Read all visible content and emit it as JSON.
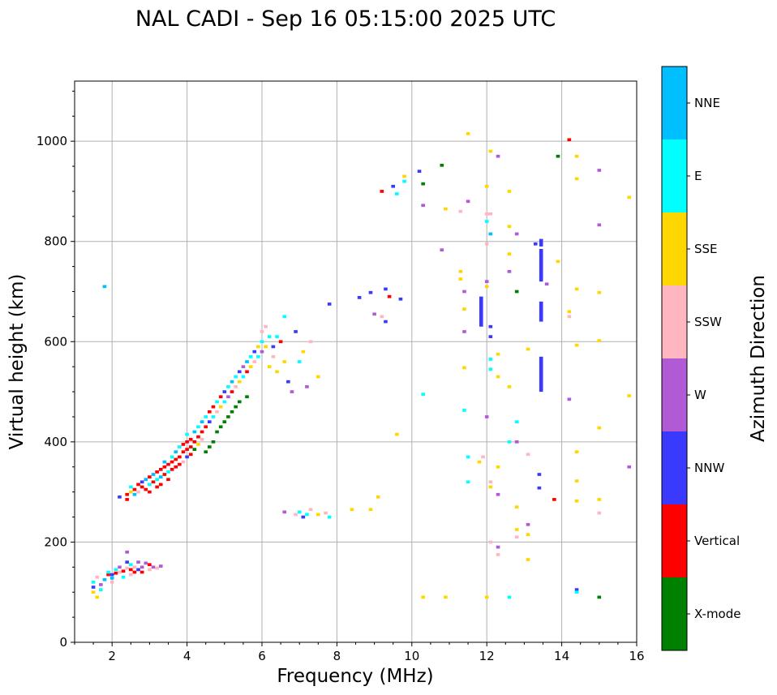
{
  "chart_data": {
    "type": "scatter",
    "title": "NAL CADI - Sep 16 05:15:00 2025 UTC",
    "xlabel": "Frequency (MHz)",
    "ylabel": "Virtual height (km)",
    "xlim": [
      1,
      16
    ],
    "ylim": [
      0,
      1120
    ],
    "xticks": [
      2,
      4,
      6,
      8,
      10,
      12,
      14,
      16
    ],
    "yticks": [
      0,
      200,
      400,
      600,
      800,
      1000
    ],
    "grid": true,
    "colorbar": {
      "title": "Azimuth Direction",
      "categories": [
        {
          "name": "X-mode",
          "color": "#008000"
        },
        {
          "name": "Vertical",
          "color": "#ff0000"
        },
        {
          "name": "NNW",
          "color": "#3a3aff"
        },
        {
          "name": "W",
          "color": "#b25ad6"
        },
        {
          "name": "SSW",
          "color": "#ffb6c1"
        },
        {
          "name": "SSE",
          "color": "#ffd700"
        },
        {
          "name": "E",
          "color": "#00ffff"
        },
        {
          "name": "NNE",
          "color": "#00bfff"
        }
      ]
    },
    "points": [
      [
        1.5,
        100,
        5
      ],
      [
        1.5,
        110,
        2
      ],
      [
        1.5,
        120,
        6
      ],
      [
        1.6,
        90,
        5
      ],
      [
        1.6,
        130,
        4
      ],
      [
        1.7,
        105,
        6
      ],
      [
        1.7,
        115,
        3
      ],
      [
        1.8,
        125,
        7
      ],
      [
        1.9,
        135,
        1
      ],
      [
        1.9,
        140,
        6
      ],
      [
        2.0,
        135,
        2
      ],
      [
        2.0,
        120,
        4
      ],
      [
        2.0,
        128,
        7
      ],
      [
        2.1,
        138,
        1
      ],
      [
        2.1,
        145,
        6
      ],
      [
        2.2,
        140,
        4
      ],
      [
        2.2,
        150,
        3
      ],
      [
        2.3,
        142,
        1
      ],
      [
        2.3,
        130,
        6
      ],
      [
        2.4,
        148,
        4
      ],
      [
        2.4,
        160,
        2
      ],
      [
        2.4,
        180,
        3
      ],
      [
        2.5,
        145,
        1
      ],
      [
        2.5,
        135,
        4
      ],
      [
        2.5,
        155,
        6
      ],
      [
        2.6,
        150,
        4
      ],
      [
        2.6,
        140,
        1
      ],
      [
        2.7,
        160,
        3
      ],
      [
        2.7,
        145,
        2
      ],
      [
        2.8,
        150,
        3
      ],
      [
        2.8,
        140,
        1
      ],
      [
        2.9,
        158,
        3
      ],
      [
        3.0,
        145,
        4
      ],
      [
        3.0,
        155,
        1
      ],
      [
        3.1,
        150,
        3
      ],
      [
        3.2,
        148,
        4
      ],
      [
        3.3,
        152,
        3
      ],
      [
        1.8,
        710,
        7
      ],
      [
        2.2,
        290,
        2
      ],
      [
        2.4,
        295,
        1
      ],
      [
        2.4,
        285,
        1
      ],
      [
        2.5,
        300,
        5
      ],
      [
        2.5,
        310,
        6
      ],
      [
        2.6,
        305,
        1
      ],
      [
        2.6,
        295,
        7
      ],
      [
        2.7,
        315,
        1
      ],
      [
        2.7,
        300,
        4
      ],
      [
        2.8,
        320,
        2
      ],
      [
        2.8,
        310,
        1
      ],
      [
        2.9,
        325,
        7
      ],
      [
        2.9,
        305,
        1
      ],
      [
        3.0,
        330,
        1
      ],
      [
        3.0,
        315,
        6
      ],
      [
        3.0,
        300,
        1
      ],
      [
        3.1,
        335,
        7
      ],
      [
        3.1,
        320,
        1
      ],
      [
        3.2,
        340,
        1
      ],
      [
        3.2,
        325,
        6
      ],
      [
        3.2,
        310,
        1
      ],
      [
        3.3,
        345,
        1
      ],
      [
        3.3,
        330,
        7
      ],
      [
        3.3,
        315,
        1
      ],
      [
        3.4,
        350,
        1
      ],
      [
        3.4,
        335,
        1
      ],
      [
        3.4,
        360,
        7
      ],
      [
        3.5,
        355,
        1
      ],
      [
        3.5,
        340,
        6
      ],
      [
        3.5,
        325,
        1
      ],
      [
        3.6,
        360,
        1
      ],
      [
        3.6,
        345,
        1
      ],
      [
        3.6,
        370,
        6
      ],
      [
        3.7,
        365,
        1
      ],
      [
        3.7,
        350,
        1
      ],
      [
        3.7,
        380,
        7
      ],
      [
        3.8,
        370,
        1
      ],
      [
        3.8,
        355,
        1
      ],
      [
        3.8,
        390,
        6
      ],
      [
        3.9,
        380,
        1
      ],
      [
        3.9,
        395,
        1
      ],
      [
        3.9,
        360,
        4
      ],
      [
        4.0,
        385,
        1
      ],
      [
        4.0,
        400,
        1
      ],
      [
        4.0,
        370,
        2
      ],
      [
        4.0,
        415,
        6
      ],
      [
        4.1,
        390,
        1
      ],
      [
        4.1,
        405,
        1
      ],
      [
        4.1,
        375,
        1
      ],
      [
        4.2,
        400,
        1
      ],
      [
        4.2,
        420,
        7
      ],
      [
        4.2,
        385,
        0
      ],
      [
        4.3,
        410,
        1
      ],
      [
        4.3,
        430,
        6
      ],
      [
        4.3,
        395,
        5
      ],
      [
        4.4,
        420,
        1
      ],
      [
        4.4,
        440,
        7
      ],
      [
        4.4,
        405,
        4
      ],
      [
        4.5,
        430,
        1
      ],
      [
        4.5,
        450,
        6
      ],
      [
        4.5,
        380,
        0
      ],
      [
        4.6,
        440,
        2
      ],
      [
        4.6,
        460,
        1
      ],
      [
        4.6,
        390,
        0
      ],
      [
        4.7,
        450,
        6
      ],
      [
        4.7,
        470,
        1
      ],
      [
        4.7,
        400,
        0
      ],
      [
        4.8,
        460,
        4
      ],
      [
        4.8,
        480,
        6
      ],
      [
        4.8,
        420,
        0
      ],
      [
        4.9,
        470,
        5
      ],
      [
        4.9,
        490,
        1
      ],
      [
        4.9,
        430,
        0
      ],
      [
        5.0,
        480,
        6
      ],
      [
        5.0,
        500,
        2
      ],
      [
        5.0,
        440,
        0
      ],
      [
        5.1,
        490,
        3
      ],
      [
        5.1,
        510,
        6
      ],
      [
        5.1,
        450,
        0
      ],
      [
        5.2,
        500,
        1
      ],
      [
        5.2,
        520,
        7
      ],
      [
        5.2,
        460,
        0
      ],
      [
        5.3,
        510,
        4
      ],
      [
        5.3,
        530,
        6
      ],
      [
        5.3,
        470,
        0
      ],
      [
        5.4,
        520,
        5
      ],
      [
        5.4,
        540,
        2
      ],
      [
        5.4,
        480,
        0
      ],
      [
        5.5,
        530,
        6
      ],
      [
        5.5,
        550,
        3
      ],
      [
        5.6,
        540,
        1
      ],
      [
        5.6,
        560,
        7
      ],
      [
        5.6,
        490,
        0
      ],
      [
        5.7,
        550,
        5
      ],
      [
        5.7,
        570,
        6
      ],
      [
        5.8,
        560,
        4
      ],
      [
        5.8,
        580,
        2
      ],
      [
        5.9,
        570,
        6
      ],
      [
        5.9,
        590,
        5
      ],
      [
        6.0,
        580,
        3
      ],
      [
        6.0,
        600,
        6
      ],
      [
        6.0,
        620,
        4
      ],
      [
        6.1,
        590,
        5
      ],
      [
        6.1,
        630,
        4
      ],
      [
        6.2,
        610,
        6
      ],
      [
        6.2,
        550,
        5
      ],
      [
        6.3,
        570,
        4
      ],
      [
        6.3,
        590,
        2
      ],
      [
        6.4,
        540,
        5
      ],
      [
        6.4,
        610,
        6
      ],
      [
        6.5,
        600,
        1
      ],
      [
        6.6,
        560,
        5
      ],
      [
        6.6,
        650,
        6
      ],
      [
        6.7,
        520,
        2
      ],
      [
        6.8,
        500,
        3
      ],
      [
        6.9,
        620,
        2
      ],
      [
        7.0,
        560,
        6
      ],
      [
        7.1,
        580,
        5
      ],
      [
        7.2,
        510,
        3
      ],
      [
        7.3,
        600,
        4
      ],
      [
        7.5,
        530,
        5
      ],
      [
        7.8,
        675,
        2
      ],
      [
        6.6,
        260,
        3
      ],
      [
        6.9,
        255,
        4
      ],
      [
        7.0,
        260,
        6
      ],
      [
        7.1,
        250,
        2
      ],
      [
        7.2,
        255,
        6
      ],
      [
        7.3,
        265,
        4
      ],
      [
        7.5,
        255,
        5
      ],
      [
        7.7,
        258,
        4
      ],
      [
        7.8,
        250,
        6
      ],
      [
        8.4,
        265,
        5
      ],
      [
        8.9,
        265,
        5
      ],
      [
        9.1,
        290,
        5
      ],
      [
        9.6,
        415,
        5
      ],
      [
        8.6,
        688,
        2
      ],
      [
        8.9,
        698,
        2
      ],
      [
        9.0,
        655,
        3
      ],
      [
        9.2,
        650,
        4
      ],
      [
        9.3,
        640,
        2
      ],
      [
        9.4,
        690,
        1
      ],
      [
        9.7,
        685,
        2
      ],
      [
        9.3,
        705,
        2
      ],
      [
        9.2,
        900,
        1
      ],
      [
        9.5,
        910,
        2
      ],
      [
        9.6,
        895,
        6
      ],
      [
        9.8,
        920,
        6
      ],
      [
        9.8,
        930,
        5
      ],
      [
        10.2,
        940,
        2
      ],
      [
        10.3,
        915,
        0
      ],
      [
        10.3,
        872,
        3
      ],
      [
        10.3,
        495,
        6
      ],
      [
        10.8,
        952,
        0
      ],
      [
        10.8,
        783,
        3
      ],
      [
        10.9,
        865,
        5
      ],
      [
        11.3,
        860,
        4
      ],
      [
        11.3,
        740,
        5
      ],
      [
        11.3,
        725,
        5
      ],
      [
        11.4,
        700,
        3
      ],
      [
        11.4,
        665,
        5
      ],
      [
        11.4,
        620,
        3
      ],
      [
        11.4,
        548,
        5
      ],
      [
        11.4,
        463,
        6
      ],
      [
        11.5,
        880,
        3
      ],
      [
        11.5,
        1015,
        5
      ],
      [
        11.5,
        370,
        6
      ],
      [
        11.5,
        320,
        6
      ],
      [
        10.3,
        90,
        5
      ],
      [
        10.9,
        90,
        5
      ],
      [
        11.8,
        360,
        5
      ],
      [
        11.9,
        370,
        4
      ],
      [
        12.0,
        910,
        5
      ],
      [
        12.0,
        855,
        4
      ],
      [
        12.0,
        840,
        6
      ],
      [
        12.0,
        795,
        4
      ],
      [
        12.0,
        720,
        3
      ],
      [
        12.0,
        710,
        5
      ],
      [
        12.0,
        450,
        3
      ],
      [
        12.0,
        90,
        5
      ],
      [
        12.1,
        980,
        5
      ],
      [
        12.1,
        855,
        4
      ],
      [
        12.1,
        815,
        7
      ],
      [
        12.1,
        630,
        2
      ],
      [
        12.1,
        610,
        2
      ],
      [
        12.1,
        565,
        6
      ],
      [
        12.1,
        545,
        6
      ],
      [
        12.1,
        320,
        4
      ],
      [
        12.1,
        310,
        5
      ],
      [
        12.1,
        200,
        4
      ],
      [
        12.3,
        970,
        3
      ],
      [
        12.3,
        575,
        5
      ],
      [
        12.3,
        530,
        5
      ],
      [
        12.3,
        350,
        5
      ],
      [
        12.3,
        295,
        3
      ],
      [
        12.3,
        190,
        3
      ],
      [
        12.3,
        175,
        4
      ],
      [
        12.6,
        900,
        5
      ],
      [
        12.6,
        830,
        5
      ],
      [
        12.6,
        775,
        5
      ],
      [
        12.6,
        740,
        3
      ],
      [
        12.6,
        510,
        5
      ],
      [
        12.6,
        400,
        6
      ],
      [
        12.6,
        90,
        6
      ],
      [
        12.8,
        815,
        3
      ],
      [
        12.8,
        700,
        0
      ],
      [
        12.8,
        440,
        6
      ],
      [
        12.8,
        400,
        3
      ],
      [
        12.8,
        270,
        5
      ],
      [
        12.8,
        225,
        5
      ],
      [
        12.8,
        210,
        4
      ],
      [
        13.1,
        585,
        5
      ],
      [
        13.1,
        375,
        4
      ],
      [
        13.1,
        235,
        3
      ],
      [
        13.1,
        215,
        5
      ],
      [
        13.1,
        165,
        5
      ],
      [
        13.3,
        795,
        2
      ],
      [
        13.4,
        335,
        2
      ],
      [
        13.4,
        308,
        2
      ],
      [
        13.6,
        715,
        3
      ],
      [
        13.8,
        285,
        1
      ],
      [
        13.9,
        970,
        0
      ],
      [
        13.9,
        760,
        5
      ],
      [
        14.2,
        1003,
        1
      ],
      [
        14.2,
        660,
        5
      ],
      [
        14.2,
        650,
        4
      ],
      [
        14.2,
        485,
        3
      ],
      [
        14.4,
        970,
        5
      ],
      [
        14.4,
        925,
        5
      ],
      [
        14.4,
        705,
        5
      ],
      [
        14.4,
        593,
        5
      ],
      [
        14.4,
        380,
        5
      ],
      [
        14.4,
        322,
        5
      ],
      [
        14.4,
        282,
        5
      ],
      [
        14.4,
        105,
        2
      ],
      [
        14.4,
        100,
        6
      ],
      [
        15.0,
        942,
        3
      ],
      [
        15.0,
        833,
        3
      ],
      [
        15.0,
        698,
        5
      ],
      [
        15.0,
        602,
        5
      ],
      [
        15.0,
        428,
        5
      ],
      [
        15.0,
        285,
        5
      ],
      [
        15.0,
        258,
        4
      ],
      [
        15.0,
        90,
        0
      ],
      [
        15.8,
        888,
        5
      ],
      [
        15.8,
        492,
        5
      ],
      [
        15.8,
        350,
        3
      ]
    ],
    "bars": [
      [
        11.85,
        630,
        690,
        2
      ],
      [
        13.45,
        500,
        570,
        2
      ],
      [
        13.45,
        640,
        680,
        2
      ],
      [
        13.45,
        720,
        785,
        2
      ],
      [
        13.45,
        790,
        805,
        2
      ]
    ]
  }
}
